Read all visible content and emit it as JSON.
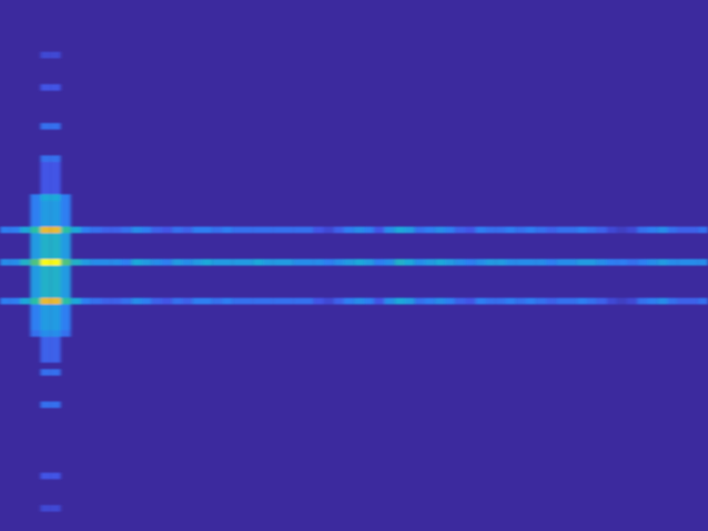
{
  "chart_data": {
    "type": "heatmap",
    "xlim": [
      0,
      70
    ],
    "ylim": [
      82,
      0
    ],
    "color_range": [
      0,
      1
    ],
    "tick_labels": false,
    "cells": [
      [
        4,
        8,
        0.15
      ],
      [
        5,
        8,
        0.15
      ],
      [
        4,
        13,
        0.2
      ],
      [
        5,
        13,
        0.2
      ],
      [
        4,
        19,
        0.3
      ],
      [
        5,
        19,
        0.3
      ],
      [
        4,
        24,
        0.3
      ],
      [
        5,
        24,
        0.3
      ],
      [
        4,
        25,
        0.2
      ],
      [
        5,
        25,
        0.2
      ],
      [
        4,
        26,
        0.2
      ],
      [
        5,
        26,
        0.2
      ],
      [
        4,
        27,
        0.2
      ],
      [
        5,
        27,
        0.2
      ],
      [
        4,
        28,
        0.2
      ],
      [
        5,
        28,
        0.2
      ],
      [
        4,
        29,
        0.2
      ],
      [
        5,
        29,
        0.2
      ],
      [
        3,
        30,
        0.35
      ],
      [
        4,
        30,
        0.5
      ],
      [
        5,
        30,
        0.5
      ],
      [
        6,
        30,
        0.35
      ],
      [
        3,
        31,
        0.35
      ],
      [
        4,
        31,
        0.45
      ],
      [
        5,
        31,
        0.45
      ],
      [
        6,
        31,
        0.35
      ],
      [
        3,
        32,
        0.35
      ],
      [
        4,
        32,
        0.45
      ],
      [
        5,
        32,
        0.45
      ],
      [
        6,
        32,
        0.35
      ],
      [
        3,
        33,
        0.35
      ],
      [
        4,
        33,
        0.45
      ],
      [
        5,
        33,
        0.45
      ],
      [
        6,
        33,
        0.35
      ],
      [
        3,
        34,
        0.35
      ],
      [
        4,
        34,
        0.45
      ],
      [
        5,
        34,
        0.45
      ],
      [
        6,
        34,
        0.35
      ],
      [
        3,
        35,
        0.65
      ],
      [
        4,
        35,
        0.9
      ],
      [
        5,
        35,
        0.9
      ],
      [
        6,
        35,
        0.65
      ],
      [
        3,
        36,
        0.45
      ],
      [
        4,
        36,
        0.55
      ],
      [
        5,
        36,
        0.55
      ],
      [
        6,
        36,
        0.45
      ],
      [
        3,
        37,
        0.45
      ],
      [
        4,
        37,
        0.55
      ],
      [
        5,
        37,
        0.55
      ],
      [
        6,
        37,
        0.45
      ],
      [
        3,
        38,
        0.45
      ],
      [
        4,
        38,
        0.55
      ],
      [
        5,
        38,
        0.55
      ],
      [
        6,
        38,
        0.45
      ],
      [
        3,
        39,
        0.45
      ],
      [
        4,
        39,
        0.55
      ],
      [
        5,
        39,
        0.55
      ],
      [
        6,
        39,
        0.45
      ],
      [
        3,
        40,
        0.7
      ],
      [
        4,
        40,
        1.0
      ],
      [
        5,
        40,
        1.0
      ],
      [
        6,
        40,
        0.7
      ],
      [
        3,
        41,
        0.45
      ],
      [
        4,
        41,
        0.55
      ],
      [
        5,
        41,
        0.55
      ],
      [
        6,
        41,
        0.45
      ],
      [
        3,
        42,
        0.45
      ],
      [
        4,
        42,
        0.55
      ],
      [
        5,
        42,
        0.55
      ],
      [
        6,
        42,
        0.45
      ],
      [
        3,
        43,
        0.45
      ],
      [
        4,
        43,
        0.55
      ],
      [
        5,
        43,
        0.55
      ],
      [
        6,
        43,
        0.45
      ],
      [
        3,
        44,
        0.45
      ],
      [
        4,
        44,
        0.55
      ],
      [
        5,
        44,
        0.55
      ],
      [
        6,
        44,
        0.45
      ],
      [
        3,
        45,
        0.45
      ],
      [
        4,
        45,
        0.55
      ],
      [
        5,
        45,
        0.55
      ],
      [
        6,
        45,
        0.45
      ],
      [
        3,
        46,
        0.65
      ],
      [
        4,
        46,
        0.9
      ],
      [
        5,
        46,
        0.9
      ],
      [
        6,
        46,
        0.65
      ],
      [
        3,
        47,
        0.35
      ],
      [
        4,
        47,
        0.45
      ],
      [
        5,
        47,
        0.45
      ],
      [
        6,
        47,
        0.35
      ],
      [
        3,
        48,
        0.35
      ],
      [
        4,
        48,
        0.45
      ],
      [
        5,
        48,
        0.45
      ],
      [
        6,
        48,
        0.35
      ],
      [
        3,
        49,
        0.35
      ],
      [
        4,
        49,
        0.45
      ],
      [
        5,
        49,
        0.45
      ],
      [
        6,
        49,
        0.35
      ],
      [
        3,
        50,
        0.35
      ],
      [
        4,
        50,
        0.45
      ],
      [
        5,
        50,
        0.45
      ],
      [
        6,
        50,
        0.35
      ],
      [
        3,
        51,
        0.3
      ],
      [
        4,
        51,
        0.4
      ],
      [
        5,
        51,
        0.4
      ],
      [
        6,
        51,
        0.3
      ],
      [
        4,
        52,
        0.25
      ],
      [
        5,
        52,
        0.25
      ],
      [
        4,
        53,
        0.25
      ],
      [
        5,
        53,
        0.25
      ],
      [
        4,
        54,
        0.25
      ],
      [
        5,
        54,
        0.25
      ],
      [
        4,
        55,
        0.25
      ],
      [
        5,
        55,
        0.25
      ],
      [
        4,
        57,
        0.3
      ],
      [
        5,
        57,
        0.3
      ],
      [
        4,
        62,
        0.3
      ],
      [
        5,
        62,
        0.3
      ],
      [
        4,
        73,
        0.2
      ],
      [
        5,
        73,
        0.2
      ],
      [
        4,
        78,
        0.15
      ],
      [
        5,
        78,
        0.15
      ],
      [
        0,
        40,
        0.4
      ],
      [
        1,
        40,
        0.4
      ],
      [
        2,
        40,
        0.55
      ],
      [
        7,
        40,
        0.55
      ],
      [
        8,
        40,
        0.45
      ],
      [
        9,
        40,
        0.4
      ],
      [
        10,
        40,
        0.4
      ],
      [
        11,
        40,
        0.4
      ],
      [
        12,
        40,
        0.35
      ],
      [
        13,
        40,
        0.5
      ],
      [
        14,
        40,
        0.45
      ],
      [
        15,
        40,
        0.4
      ],
      [
        16,
        40,
        0.35
      ],
      [
        17,
        40,
        0.45
      ],
      [
        18,
        40,
        0.4
      ],
      [
        19,
        40,
        0.45
      ],
      [
        20,
        40,
        0.5
      ],
      [
        21,
        40,
        0.45
      ],
      [
        22,
        40,
        0.45
      ],
      [
        23,
        40,
        0.45
      ],
      [
        24,
        40,
        0.45
      ],
      [
        25,
        40,
        0.5
      ],
      [
        26,
        40,
        0.45
      ],
      [
        27,
        40,
        0.45
      ],
      [
        28,
        40,
        0.45
      ],
      [
        29,
        40,
        0.4
      ],
      [
        30,
        40,
        0.4
      ],
      [
        31,
        40,
        0.4
      ],
      [
        32,
        40,
        0.35
      ],
      [
        33,
        40,
        0.4
      ],
      [
        34,
        40,
        0.45
      ],
      [
        35,
        40,
        0.5
      ],
      [
        36,
        40,
        0.45
      ],
      [
        37,
        40,
        0.35
      ],
      [
        38,
        40,
        0.4
      ],
      [
        39,
        40,
        0.55
      ],
      [
        40,
        40,
        0.5
      ],
      [
        41,
        40,
        0.4
      ],
      [
        42,
        40,
        0.45
      ],
      [
        43,
        40,
        0.5
      ],
      [
        44,
        40,
        0.45
      ],
      [
        45,
        40,
        0.4
      ],
      [
        46,
        40,
        0.35
      ],
      [
        47,
        40,
        0.4
      ],
      [
        48,
        40,
        0.45
      ],
      [
        49,
        40,
        0.45
      ],
      [
        50,
        40,
        0.4
      ],
      [
        51,
        40,
        0.4
      ],
      [
        52,
        40,
        0.4
      ],
      [
        53,
        40,
        0.4
      ],
      [
        54,
        40,
        0.35
      ],
      [
        55,
        40,
        0.4
      ],
      [
        56,
        40,
        0.4
      ],
      [
        57,
        40,
        0.45
      ],
      [
        58,
        40,
        0.45
      ],
      [
        59,
        40,
        0.4
      ],
      [
        60,
        40,
        0.35
      ],
      [
        61,
        40,
        0.35
      ],
      [
        62,
        40,
        0.3
      ],
      [
        63,
        40,
        0.35
      ],
      [
        64,
        40,
        0.4
      ],
      [
        65,
        40,
        0.45
      ],
      [
        66,
        40,
        0.4
      ],
      [
        67,
        40,
        0.4
      ],
      [
        68,
        40,
        0.4
      ],
      [
        69,
        40,
        0.4
      ],
      [
        0,
        35,
        0.35
      ],
      [
        1,
        35,
        0.35
      ],
      [
        2,
        35,
        0.5
      ],
      [
        7,
        35,
        0.5
      ],
      [
        8,
        35,
        0.35
      ],
      [
        9,
        35,
        0.3
      ],
      [
        10,
        35,
        0.25
      ],
      [
        11,
        35,
        0.25
      ],
      [
        12,
        35,
        0.3
      ],
      [
        13,
        35,
        0.4
      ],
      [
        14,
        35,
        0.35
      ],
      [
        15,
        35,
        0.25
      ],
      [
        16,
        35,
        0.2
      ],
      [
        17,
        35,
        0.3
      ],
      [
        18,
        35,
        0.25
      ],
      [
        19,
        35,
        0.35
      ],
      [
        20,
        35,
        0.35
      ],
      [
        21,
        35,
        0.3
      ],
      [
        22,
        35,
        0.35
      ],
      [
        23,
        35,
        0.3
      ],
      [
        24,
        35,
        0.3
      ],
      [
        25,
        35,
        0.3
      ],
      [
        26,
        35,
        0.3
      ],
      [
        27,
        35,
        0.3
      ],
      [
        28,
        35,
        0.3
      ],
      [
        29,
        35,
        0.3
      ],
      [
        30,
        35,
        0.3
      ],
      [
        31,
        35,
        0.2
      ],
      [
        32,
        35,
        0.15
      ],
      [
        33,
        35,
        0.25
      ],
      [
        34,
        35,
        0.35
      ],
      [
        35,
        35,
        0.4
      ],
      [
        36,
        35,
        0.35
      ],
      [
        37,
        35,
        0.2
      ],
      [
        38,
        35,
        0.4
      ],
      [
        39,
        35,
        0.5
      ],
      [
        40,
        35,
        0.45
      ],
      [
        41,
        35,
        0.3
      ],
      [
        42,
        35,
        0.35
      ],
      [
        43,
        35,
        0.4
      ],
      [
        44,
        35,
        0.35
      ],
      [
        45,
        35,
        0.25
      ],
      [
        46,
        35,
        0.2
      ],
      [
        47,
        35,
        0.35
      ],
      [
        48,
        35,
        0.3
      ],
      [
        49,
        35,
        0.3
      ],
      [
        50,
        35,
        0.35
      ],
      [
        51,
        35,
        0.3
      ],
      [
        52,
        35,
        0.35
      ],
      [
        53,
        35,
        0.3
      ],
      [
        54,
        35,
        0.25
      ],
      [
        55,
        35,
        0.3
      ],
      [
        56,
        35,
        0.3
      ],
      [
        57,
        35,
        0.35
      ],
      [
        58,
        35,
        0.3
      ],
      [
        59,
        35,
        0.25
      ],
      [
        60,
        35,
        0.15
      ],
      [
        61,
        35,
        0.1
      ],
      [
        62,
        35,
        0.15
      ],
      [
        63,
        35,
        0.3
      ],
      [
        64,
        35,
        0.35
      ],
      [
        65,
        35,
        0.4
      ],
      [
        66,
        35,
        0.3
      ],
      [
        67,
        35,
        0.25
      ],
      [
        68,
        35,
        0.25
      ],
      [
        69,
        35,
        0.3
      ],
      [
        0,
        46,
        0.35
      ],
      [
        1,
        46,
        0.35
      ],
      [
        2,
        46,
        0.5
      ],
      [
        7,
        46,
        0.5
      ],
      [
        8,
        46,
        0.35
      ],
      [
        9,
        46,
        0.3
      ],
      [
        10,
        46,
        0.25
      ],
      [
        11,
        46,
        0.25
      ],
      [
        12,
        46,
        0.3
      ],
      [
        13,
        46,
        0.4
      ],
      [
        14,
        46,
        0.35
      ],
      [
        15,
        46,
        0.25
      ],
      [
        16,
        46,
        0.2
      ],
      [
        17,
        46,
        0.3
      ],
      [
        18,
        46,
        0.25
      ],
      [
        19,
        46,
        0.35
      ],
      [
        20,
        46,
        0.35
      ],
      [
        21,
        46,
        0.3
      ],
      [
        22,
        46,
        0.35
      ],
      [
        23,
        46,
        0.3
      ],
      [
        24,
        46,
        0.3
      ],
      [
        25,
        46,
        0.3
      ],
      [
        26,
        46,
        0.3
      ],
      [
        27,
        46,
        0.3
      ],
      [
        28,
        46,
        0.3
      ],
      [
        29,
        46,
        0.3
      ],
      [
        30,
        46,
        0.3
      ],
      [
        31,
        46,
        0.2
      ],
      [
        32,
        46,
        0.15
      ],
      [
        33,
        46,
        0.25
      ],
      [
        34,
        46,
        0.35
      ],
      [
        35,
        46,
        0.4
      ],
      [
        36,
        46,
        0.35
      ],
      [
        37,
        46,
        0.2
      ],
      [
        38,
        46,
        0.4
      ],
      [
        39,
        46,
        0.5
      ],
      [
        40,
        46,
        0.45
      ],
      [
        41,
        46,
        0.3
      ],
      [
        42,
        46,
        0.35
      ],
      [
        43,
        46,
        0.4
      ],
      [
        44,
        46,
        0.35
      ],
      [
        45,
        46,
        0.25
      ],
      [
        46,
        46,
        0.2
      ],
      [
        47,
        46,
        0.35
      ],
      [
        48,
        46,
        0.3
      ],
      [
        49,
        46,
        0.3
      ],
      [
        50,
        46,
        0.35
      ],
      [
        51,
        46,
        0.3
      ],
      [
        52,
        46,
        0.35
      ],
      [
        53,
        46,
        0.3
      ],
      [
        54,
        46,
        0.25
      ],
      [
        55,
        46,
        0.3
      ],
      [
        56,
        46,
        0.3
      ],
      [
        57,
        46,
        0.35
      ],
      [
        58,
        46,
        0.3
      ],
      [
        59,
        46,
        0.25
      ],
      [
        60,
        46,
        0.15
      ],
      [
        61,
        46,
        0.1
      ],
      [
        62,
        46,
        0.15
      ],
      [
        63,
        46,
        0.3
      ],
      [
        64,
        46,
        0.35
      ],
      [
        65,
        46,
        0.4
      ],
      [
        66,
        46,
        0.3
      ],
      [
        67,
        46,
        0.25
      ],
      [
        68,
        46,
        0.25
      ],
      [
        69,
        46,
        0.3
      ]
    ]
  }
}
